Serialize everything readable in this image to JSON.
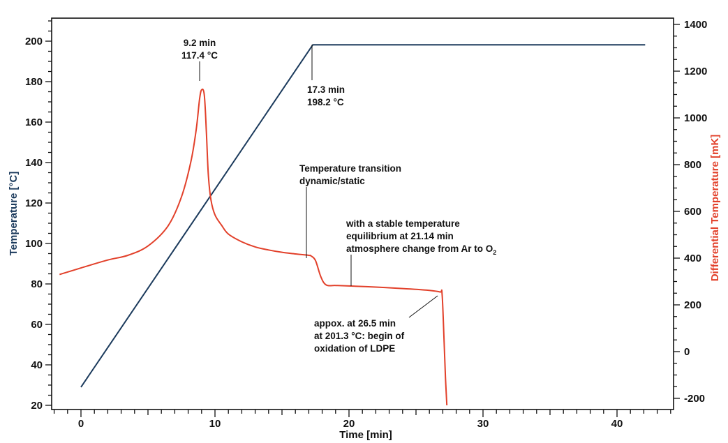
{
  "chart_data": {
    "type": "line",
    "xlabel": "Time [min]",
    "ylabel_left": "Temperature [°C]",
    "ylabel_right": "Differential Temperature [mK]",
    "xlim": [
      -2,
      44
    ],
    "ylim_left": [
      20,
      210
    ],
    "ylim_right": [
      -220,
      1400
    ],
    "x_ticks": [
      0,
      10,
      20,
      30,
      40
    ],
    "y_ticks_left": [
      20,
      40,
      60,
      80,
      100,
      120,
      140,
      160,
      180,
      200
    ],
    "y_ticks_right": [
      -200,
      0,
      200,
      400,
      600,
      800,
      1000,
      1200,
      1400
    ],
    "colors": {
      "temperature": "#1b3a5c",
      "differential": "#e2402a",
      "axis": "#111111"
    },
    "series": [
      {
        "name": "Temperature",
        "axis": "left",
        "color": "#1b3a5c",
        "x": [
          0.0,
          17.3,
          42.1
        ],
        "y": [
          29.0,
          198.2,
          198.2
        ]
      },
      {
        "name": "Differential Temperature",
        "axis": "right",
        "color": "#e2402a",
        "x": [
          -1.6,
          0.0,
          2.0,
          3.5,
          5.0,
          6.5,
          7.5,
          8.2,
          8.6,
          8.85,
          9.0,
          9.2,
          9.35,
          9.5,
          9.7,
          10.0,
          10.5,
          11.0,
          12.0,
          13.0,
          14.0,
          15.0,
          16.0,
          17.0,
          17.15,
          17.5,
          17.9,
          18.3,
          19.0,
          20.0,
          22.0,
          24.0,
          26.0,
          26.8,
          26.95,
          27.1,
          27.2,
          27.3
        ],
        "y": [
          330,
          358,
          392,
          412,
          452,
          538,
          662,
          812,
          950,
          1080,
          1120,
          1100,
          950,
          760,
          650,
          585,
          540,
          503,
          470,
          448,
          435,
          425,
          418,
          412,
          410,
          390,
          320,
          285,
          283,
          281,
          276,
          270,
          262,
          255,
          245,
          40,
          -110,
          -230
        ]
      }
    ],
    "annotations": [
      {
        "id": "peak",
        "lines": [
          "9.2 min",
          "117.4 °C"
        ]
      },
      {
        "id": "plateau-start",
        "lines": [
          "17.3 min",
          "198.2 °C"
        ]
      },
      {
        "id": "transition",
        "lines": [
          "Temperature transition",
          "dynamic/static"
        ]
      },
      {
        "id": "atmosphere",
        "lines": [
          "with a stable temperature",
          "equilibrium at 21.14 min",
          "atmosphere change from Ar to O"
        ],
        "subscript": "2"
      },
      {
        "id": "oxidation",
        "lines": [
          "appox. at 26.5 min",
          "at 201.3 °C: begin of",
          "oxidation of LDPE"
        ]
      }
    ]
  }
}
